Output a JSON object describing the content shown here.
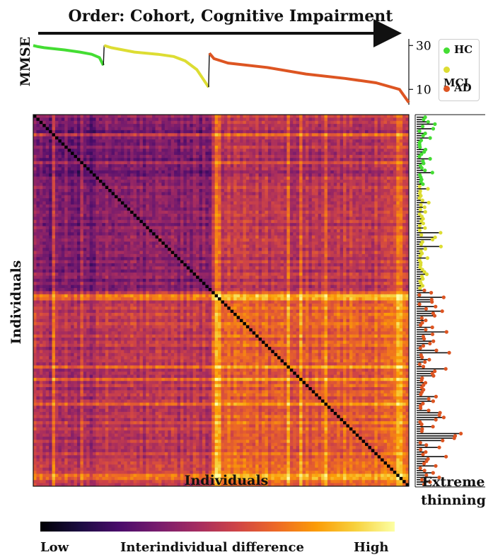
{
  "figure": {
    "order_title": "Order: Cohort, Cognitive Impairment",
    "mmse_ylabel": "MMSE",
    "heatmap_ylabel": "Individuals",
    "heatmap_xlabel": "Individuals",
    "extreme_label_1": "Extreme",
    "extreme_label_2": "thinning",
    "colorbar_low": "Low",
    "colorbar_mid": "Interindividual difference",
    "colorbar_high": "High"
  },
  "legend": [
    {
      "label": "HC",
      "color": "#44dd33"
    },
    {
      "label": "MCI",
      "color": "#dddd33"
    },
    {
      "label": "AD",
      "color": "#dd5522"
    }
  ],
  "chart_data": [
    {
      "type": "line",
      "name": "mmse_panel",
      "ylabel": "MMSE",
      "yticks": [
        10,
        30
      ],
      "ylim": [
        3,
        33
      ],
      "x_range": [
        0,
        225
      ],
      "series": [
        {
          "name": "HC",
          "color": "#44dd33",
          "points": [
            [
              0,
              30
            ],
            [
              6,
              29.5
            ],
            [
              14,
              29
            ],
            [
              40,
              28
            ],
            [
              60,
              27
            ],
            [
              75,
              26
            ],
            [
              85,
              24.5
            ],
            [
              90,
              21
            ]
          ]
        },
        {
          "name": "MCI",
          "color": "#dddd33",
          "points": [
            [
              91,
              30
            ],
            [
              100,
              29
            ],
            [
              130,
              27
            ],
            [
              160,
              26
            ],
            [
              180,
              25
            ],
            [
              195,
              23
            ],
            [
              210,
              19
            ],
            [
              225,
              11
            ]
          ]
        },
        {
          "name": "AD",
          "color": "#dd5522",
          "points": [
            [
              226,
              26.5
            ],
            [
              232,
              24
            ],
            [
              250,
              22
            ],
            [
              300,
              20
            ],
            [
              350,
              17
            ],
            [
              400,
              15
            ],
            [
              440,
              13
            ],
            [
              470,
              10
            ],
            [
              480,
              5
            ],
            [
              482,
              4
            ]
          ]
        }
      ],
      "x_max": 482
    },
    {
      "type": "heatmap",
      "name": "interindividual_difference",
      "xlabel": "Individuals",
      "ylabel": "Individuals",
      "colormap": [
        "#000004",
        "#1b0c41",
        "#4a0c6b",
        "#781c6d",
        "#a52c60",
        "#cf4446",
        "#ed6925",
        "#fb9b06",
        "#f7d13d",
        "#fcffa4"
      ],
      "n": 482,
      "group_boundaries": [
        90,
        225
      ],
      "group_mean_level": [
        0.35,
        0.42,
        0.68
      ],
      "colorbar_labels": [
        "Low",
        "Interindividual difference",
        "High"
      ]
    },
    {
      "type": "scatter",
      "name": "extreme_thinning",
      "xlabel": "Extreme thinning",
      "n": 482,
      "group_boundaries": [
        90,
        225
      ]
    }
  ]
}
